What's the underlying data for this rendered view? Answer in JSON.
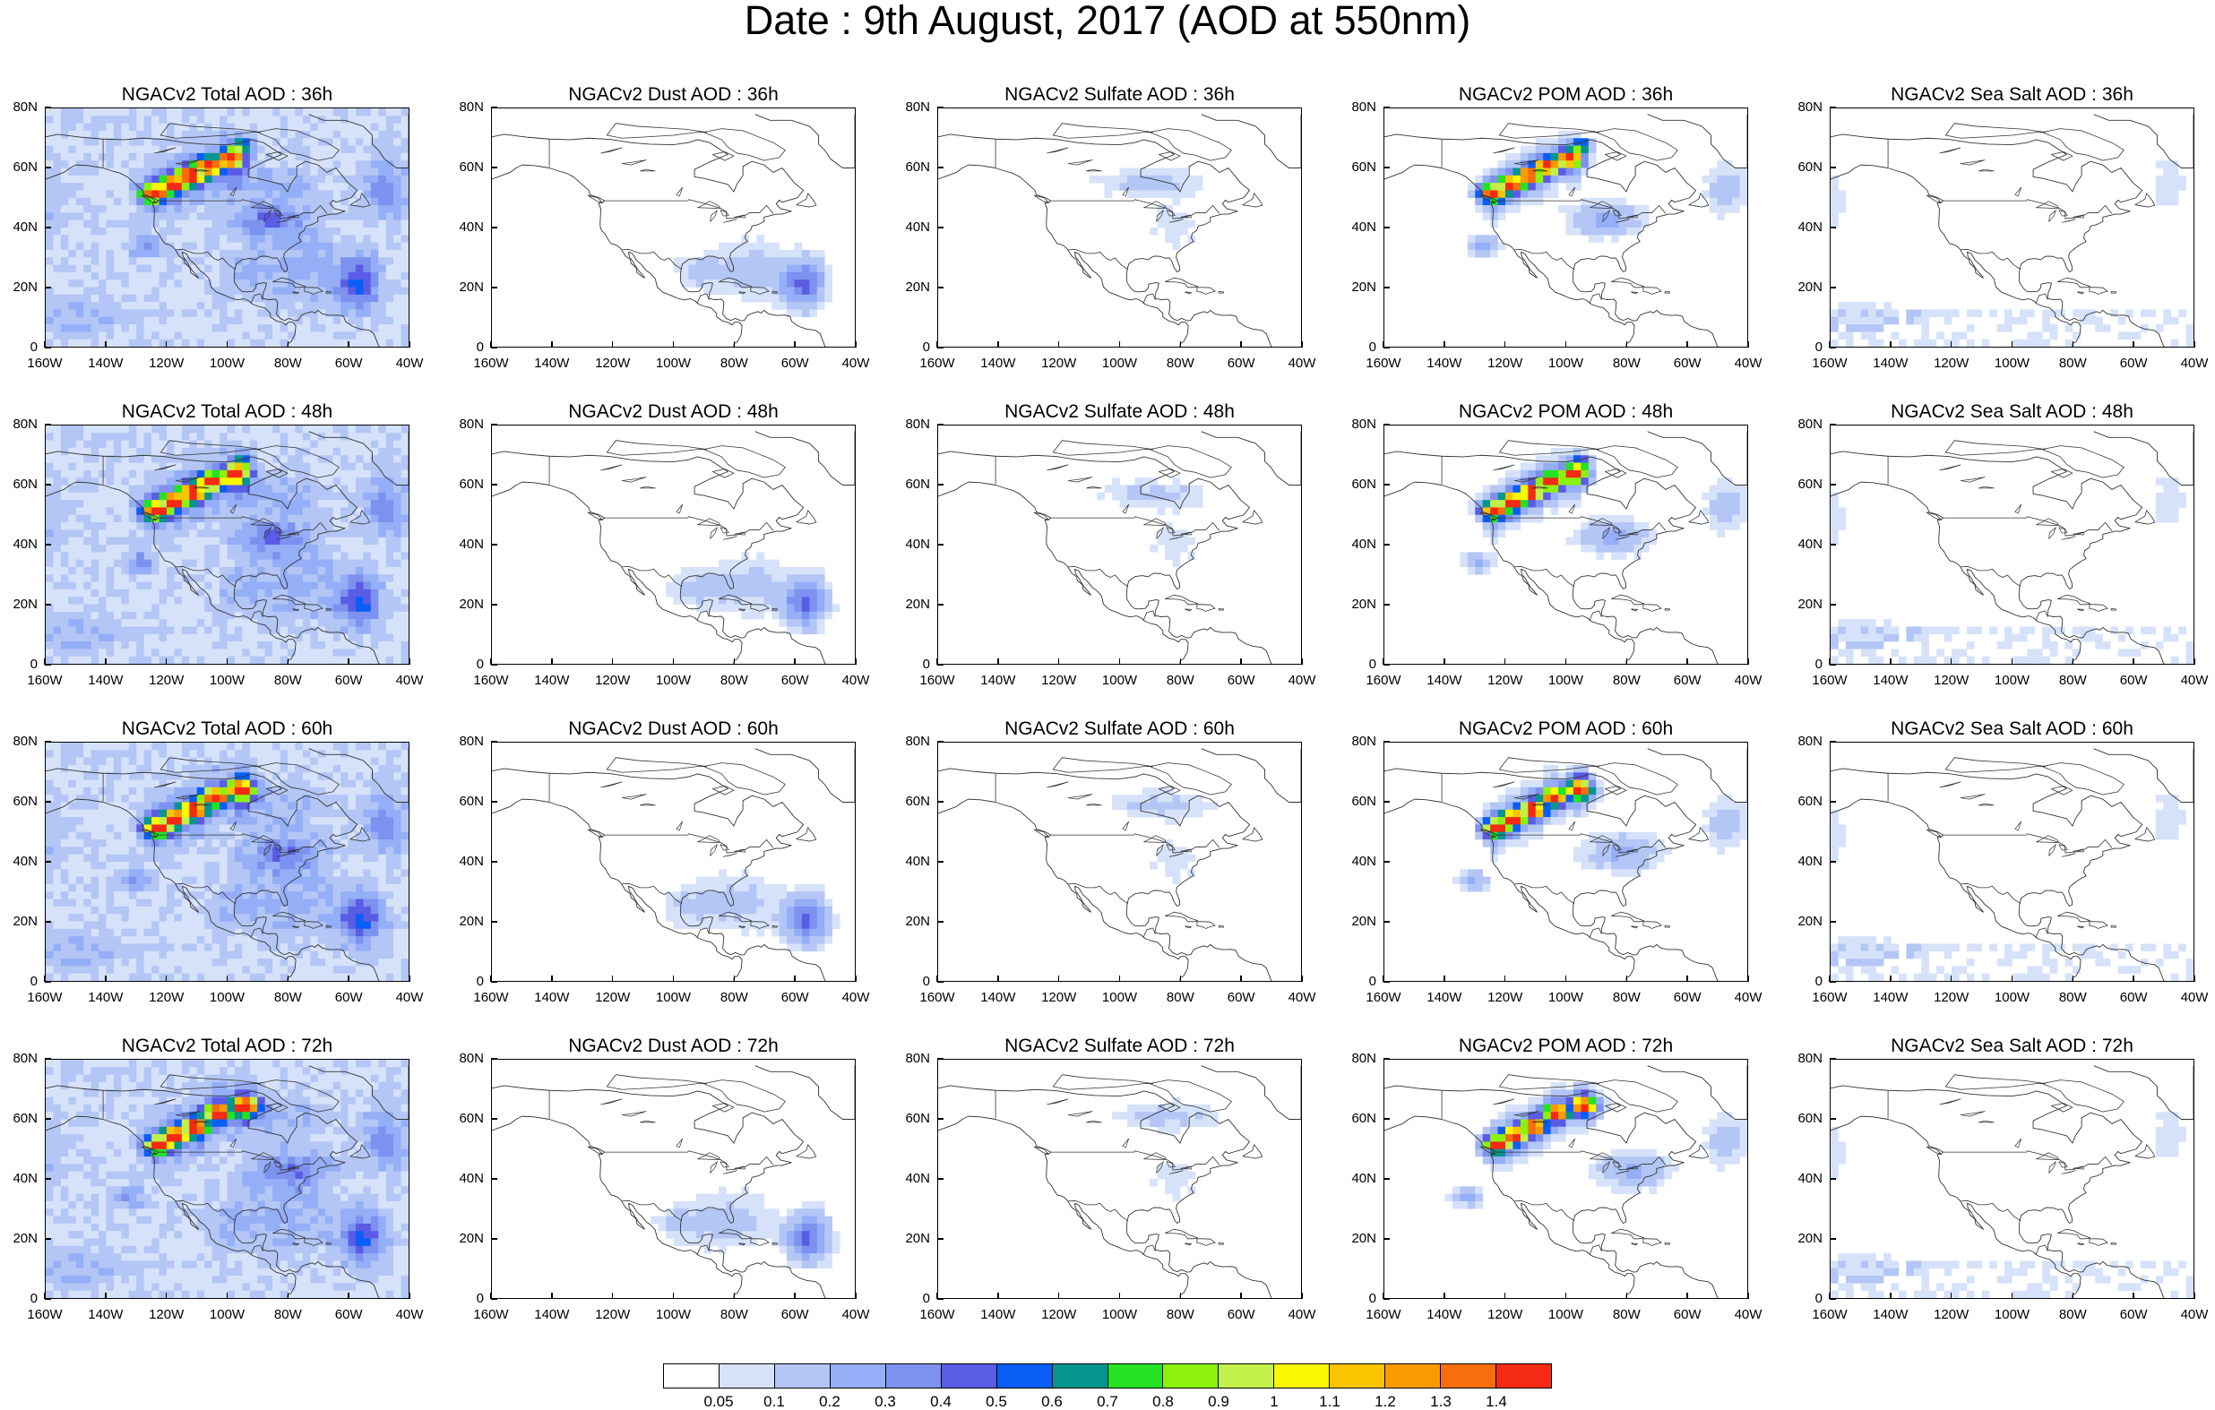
{
  "title": "Date : 9th August, 2017 (AOD at 550nm)",
  "map_axes": {
    "x_ticks": [
      "160W",
      "140W",
      "120W",
      "100W",
      "80W",
      "60W",
      "40W"
    ],
    "y_ticks": [
      "80N",
      "60N",
      "40N",
      "20N",
      "0"
    ],
    "lon_range": [
      -160,
      -40
    ],
    "lat_range": [
      0,
      80
    ]
  },
  "panels": [
    {
      "title": "NGACv2 Total AOD : 36h",
      "species": "total",
      "hour": 36
    },
    {
      "title": "NGACv2 Dust AOD : 36h",
      "species": "dust",
      "hour": 36
    },
    {
      "title": "NGACv2 Sulfate AOD : 36h",
      "species": "sulfate",
      "hour": 36
    },
    {
      "title": "NGACv2 POM AOD : 36h",
      "species": "pom",
      "hour": 36
    },
    {
      "title": "NGACv2 Sea Salt AOD : 36h",
      "species": "seasalt",
      "hour": 36
    },
    {
      "title": "NGACv2 Total AOD : 48h",
      "species": "total",
      "hour": 48
    },
    {
      "title": "NGACv2 Dust AOD : 48h",
      "species": "dust",
      "hour": 48
    },
    {
      "title": "NGACv2 Sulfate AOD : 48h",
      "species": "sulfate",
      "hour": 48
    },
    {
      "title": "NGACv2 POM AOD : 48h",
      "species": "pom",
      "hour": 48
    },
    {
      "title": "NGACv2 Sea Salt AOD : 48h",
      "species": "seasalt",
      "hour": 48
    },
    {
      "title": "NGACv2 Total AOD : 60h",
      "species": "total",
      "hour": 60
    },
    {
      "title": "NGACv2 Dust AOD : 60h",
      "species": "dust",
      "hour": 60
    },
    {
      "title": "NGACv2 Sulfate AOD : 60h",
      "species": "sulfate",
      "hour": 60
    },
    {
      "title": "NGACv2 POM AOD : 60h",
      "species": "pom",
      "hour": 60
    },
    {
      "title": "NGACv2 Sea Salt AOD : 60h",
      "species": "seasalt",
      "hour": 60
    },
    {
      "title": "NGACv2 Total AOD : 72h",
      "species": "total",
      "hour": 72
    },
    {
      "title": "NGACv2 Dust AOD : 72h",
      "species": "dust",
      "hour": 72
    },
    {
      "title": "NGACv2 Sulfate AOD : 72h",
      "species": "sulfate",
      "hour": 72
    },
    {
      "title": "NGACv2 POM AOD : 72h",
      "species": "pom",
      "hour": 72
    },
    {
      "title": "NGACv2 Sea Salt  AOD : 72h",
      "species": "seasalt",
      "hour": 72
    }
  ],
  "colorbar": {
    "labels": [
      "0.05",
      "0.1",
      "0.2",
      "0.3",
      "0.4",
      "0.5",
      "0.6",
      "0.7",
      "0.8",
      "0.9",
      "1",
      "1.1",
      "1.2",
      "1.3",
      "1.4"
    ],
    "colors": [
      "#ffffff",
      "#d6e2fa",
      "#b3c6f5",
      "#94aef7",
      "#7d91ef",
      "#5a5ce6",
      "#0b5ef5",
      "#06958f",
      "#23e323",
      "#8cf20c",
      "#c1f04b",
      "#fbf700",
      "#fbc400",
      "#fb9a00",
      "#f86e0c",
      "#f52a14"
    ]
  }
}
